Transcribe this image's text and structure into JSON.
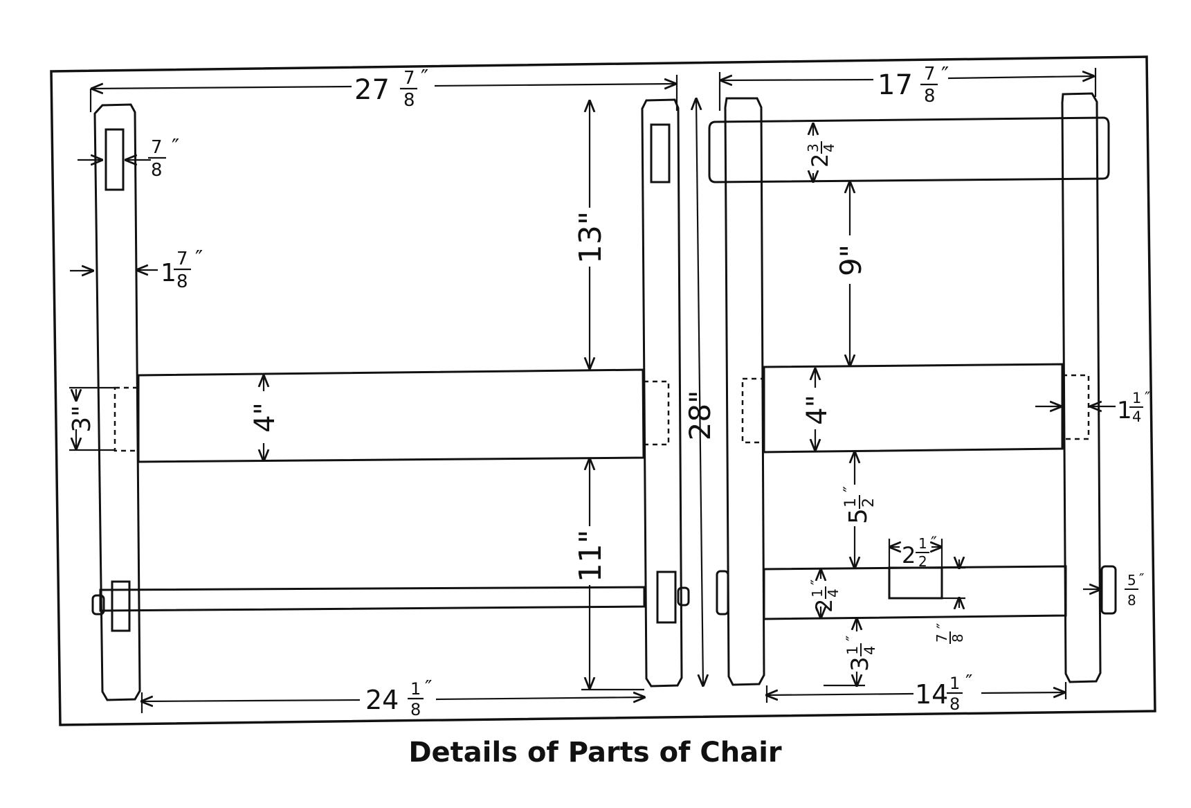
{
  "caption": "Details of Parts of Chair",
  "colors": {
    "ink": "#111111",
    "paper": "#ffffff"
  },
  "dimensions": {
    "top_left": {
      "whole": "27",
      "num": "7",
      "den": "8"
    },
    "top_right": {
      "whole": "17",
      "num": "7",
      "den": "8"
    },
    "mortise_width": {
      "whole": "",
      "num": "7",
      "den": "8"
    },
    "post_width": {
      "whole": "1",
      "num": "7",
      "den": "8"
    },
    "tenon_left": "3\"",
    "rail_left": "4\"",
    "upper_left": "13\"",
    "lower_left": "11\"",
    "height": "28\"",
    "bottom_left": {
      "whole": "24",
      "num": "1",
      "den": "8"
    },
    "top_rail": {
      "whole": "2",
      "num": "3",
      "den": "4"
    },
    "space_right": "9\"",
    "rail_right": "4\"",
    "tenon_right": {
      "whole": "1",
      "num": "1",
      "den": "4"
    },
    "space_lower_right": {
      "whole": "5",
      "num": "1",
      "den": "2"
    },
    "notch_length": {
      "whole": "2",
      "num": "1",
      "den": "2"
    },
    "low_rail": {
      "whole": "2",
      "num": "1",
      "den": "4"
    },
    "notch_depth": {
      "whole": "",
      "num": "7",
      "den": "8"
    },
    "foot_right": {
      "whole": "3",
      "num": "1",
      "den": "4"
    },
    "peg_right": {
      "whole": "",
      "num": "5",
      "den": "8"
    },
    "bottom_right": {
      "whole": "14",
      "num": "1",
      "den": "8"
    }
  }
}
